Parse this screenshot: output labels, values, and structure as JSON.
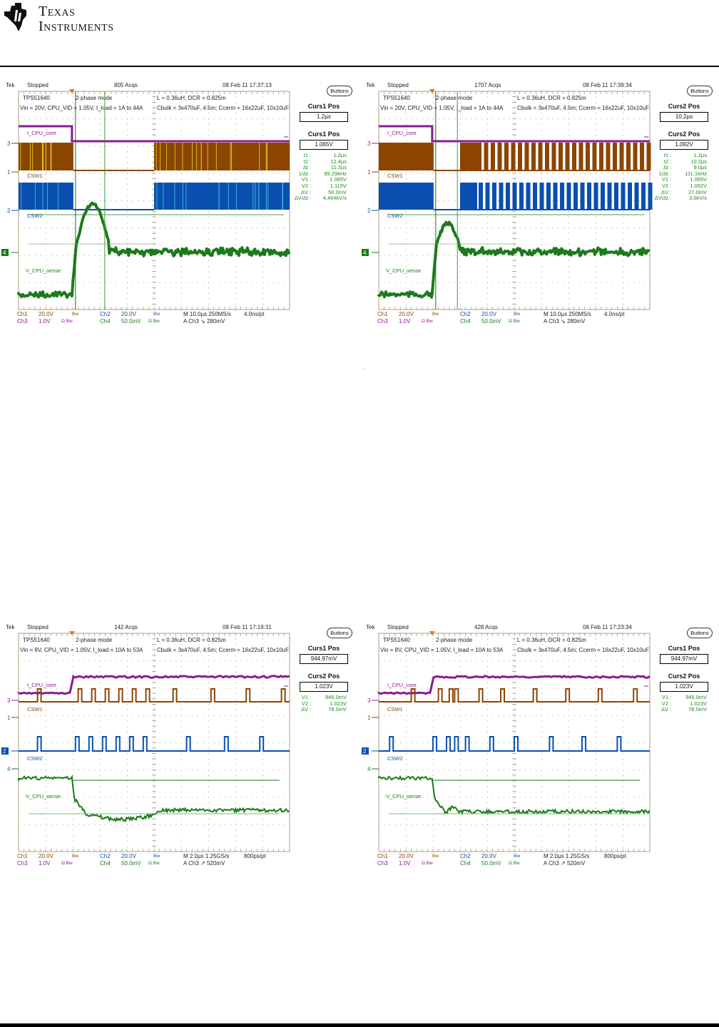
{
  "header": {
    "brand_line1": "Texas",
    "brand_line2": "Instruments",
    "logo_icon": "ti-logo-icon"
  },
  "scopes": [
    {
      "id": "top-left",
      "status": "Stopped",
      "acqs": "805 Acqs",
      "timestamp": "08 Feb 11 17:37:13",
      "notes": {
        "device": "TPS51640",
        "mode": "2-phase mode",
        "conditions": "Vin = 20V, CPU_VID = 1.05V, I_load = 1A to 44A",
        "inductor": "L = 0.36uH, DCR = 0.825m",
        "caps": "Cbulk = 3x470uF, 4.5m;  Ccerm = 16x22uF, 10x10uF"
      },
      "trace_labels": {
        "i": "I_CPU_core",
        "sw1": "CSW1",
        "sw2": "CSW2",
        "v": "V_CPU_sense"
      },
      "channel_markers": {
        "ch3": "3",
        "ch1": "1",
        "ch2": "2",
        "ch4": "4"
      },
      "buttons_label": "Buttons",
      "curs_a_title": "Curs1 Pos",
      "curs_a_value": "1.2µs",
      "curs_b_title": "Curs1 Pos",
      "curs_b_value": "1.065V",
      "measurements": [
        {
          "k": "t1",
          "v": "1.2µs"
        },
        {
          "k": "t2",
          "v": "12.4µs"
        },
        {
          "k": "Δt",
          "v": "11.2µs"
        },
        {
          "k": "1/Δt",
          "v": "89.29kHz"
        },
        {
          "k": "V1",
          "v": "1.065V"
        },
        {
          "k": "V2",
          "v": "1.115V"
        },
        {
          "k": "ΔV",
          "v": "50.0mV"
        },
        {
          "k": "ΔV/Δt",
          "v": "4.464kV/s"
        }
      ],
      "footer": {
        "ch1": "Ch1",
        "ch1_scale": "20.0V",
        "ch1_bw": "Bw",
        "ch2": "Ch2",
        "ch2_scale": "20.0V",
        "ch2_bw": "Bw",
        "ch3": "Ch3",
        "ch3_scale": "1.0V",
        "ch3_bw": "Ω Bw",
        "ch4": "Ch4",
        "ch4_scale": "50.0mV",
        "ch4_bw": "Ω Bw",
        "timebase": "M 10.0µs 250MS/s",
        "resolution": "4.0ns/pt",
        "trigger": "A  Ch3  ↘  280mV"
      },
      "waveform": {
        "kind": "switching-dense",
        "overshoot": "large",
        "gap": [
          0.2,
          0.5
        ]
      }
    },
    {
      "id": "top-right",
      "status": "Stopped",
      "acqs": "1707 Acqs",
      "timestamp": "08 Feb 11 17:39:34",
      "notes": {
        "device": "TPS51640",
        "mode": "2-phase mode",
        "conditions": "Vin = 20V, CPU_VID = 1.05V, I_load = 1A to 44A",
        "inductor": "L = 0.36uH, DCR = 0.825m",
        "caps": "Cbulk = 3x470uF, 4.5m;  Ccerm = 16x22uF, 10x10uF"
      },
      "trace_labels": {
        "i": "I_CPU_core",
        "sw1": "CSW1",
        "sw2": "CSW2",
        "v": "V_CPU_sense"
      },
      "channel_markers": {
        "ch3": "3",
        "ch1": "1",
        "ch2": "2",
        "ch4": "4"
      },
      "buttons_label": "Buttons",
      "curs_a_title": "Curs2 Pos",
      "curs_a_value": "10.2µs",
      "curs_b_title": "Curs2 Pos",
      "curs_b_value": "1.092V",
      "measurements": [
        {
          "k": "t1",
          "v": "1.2µs"
        },
        {
          "k": "t2",
          "v": "10.2µs"
        },
        {
          "k": "Δt",
          "v": "9.0µs"
        },
        {
          "k": "1/Δt",
          "v": "111.1kHz"
        },
        {
          "k": "V1",
          "v": "1.065V"
        },
        {
          "k": "V2",
          "v": "1.092V"
        },
        {
          "k": "ΔV",
          "v": "27.0mV"
        },
        {
          "k": "ΔV/Δt",
          "v": "3.0kV/s"
        }
      ],
      "footer": {
        "ch1": "Ch1",
        "ch1_scale": "20.0V",
        "ch1_bw": "Bw",
        "ch2": "Ch2",
        "ch2_scale": "20.0V",
        "ch2_bw": "Bw",
        "ch3": "Ch3",
        "ch3_scale": "1.0V",
        "ch3_bw": "Ω Bw",
        "ch4": "Ch4",
        "ch4_scale": "50.0mV",
        "ch4_bw": "Ω Bw",
        "timebase": "M 10.0µs 250MS/s",
        "resolution": "4.0ns/pt",
        "trigger": "A  Ch3  ↘  280mV"
      },
      "waveform": {
        "kind": "switching-pulsed",
        "overshoot": "medium",
        "gap": [
          0.2,
          0.3
        ]
      }
    },
    {
      "id": "bottom-left",
      "status": "Stopped",
      "acqs": "142 Acqs",
      "timestamp": "08 Feb 11 17:19:31",
      "notes": {
        "device": "TPS51640",
        "mode": "2-phase mode",
        "conditions": "Vin = 8V, CPU_VID = 1.05V, I_load = 10A to 53A",
        "inductor": "L = 0.36uH, DCR = 0.825m",
        "caps": "Cbulk = 3x470uF, 4.5m;  Ccerm = 16x22uF, 10x10uF"
      },
      "trace_labels": {
        "i": "I_CPU_core",
        "sw1": "CSW1",
        "sw2": "CSW2",
        "v": "V_CPU_sense"
      },
      "channel_markers": {
        "ch3": "3",
        "ch1": "1",
        "ch2": "2",
        "ch4": "4"
      },
      "buttons_label": "Buttons",
      "curs_a_title": "Curs1 Pos",
      "curs_a_value": "944.97mV",
      "curs_b_title": "Curs2 Pos",
      "curs_b_value": "1.023V",
      "measurements": [
        {
          "k": "V1",
          "v": "945.0mV"
        },
        {
          "k": "V2",
          "v": "1.023V"
        },
        {
          "k": "ΔV",
          "v": "78.0mV"
        }
      ],
      "footer": {
        "ch1": "Ch1",
        "ch1_scale": "20.0V",
        "ch1_bw": "Bw",
        "ch2": "Ch2",
        "ch2_scale": "20.0V",
        "ch2_bw": "Bw",
        "ch3": "Ch3",
        "ch3_scale": "1.0V",
        "ch3_bw": "Ω Bw",
        "ch4": "Ch4",
        "ch4_scale": "50.0mV",
        "ch4_bw": "Ω Bw",
        "timebase": "M 2.0µs 1.25GS/s",
        "resolution": "800ps/pt",
        "trigger": "A  Ch3  ↗  520mV"
      },
      "waveform": {
        "kind": "pulses",
        "pulses_sw1": [
          0.07,
          0.22,
          0.27,
          0.32,
          0.37,
          0.42,
          0.47,
          0.57,
          0.71,
          0.84,
          0.97
        ],
        "pulses_sw2": [
          0.07,
          0.21,
          0.26,
          0.31,
          0.36,
          0.41,
          0.46,
          0.62,
          0.76,
          0.89
        ]
      }
    },
    {
      "id": "bottom-right",
      "status": "Stopped",
      "acqs": "428 Acqs",
      "timestamp": "08 Feb 11 17:23:34",
      "notes": {
        "device": "TPS51640",
        "mode": "2-phase mode",
        "conditions": "Vin = 8V, CPU_VID = 1.05V, I_load = 10A to 53A",
        "inductor": "L = 0.36uH, DCR = 0.825m",
        "caps": "Cbulk = 3x470uF, 4.5m;  Ccerm = 16x22uF, 10x10uF"
      },
      "trace_labels": {
        "i": "I_CPU_core",
        "sw1": "CSW1",
        "sw2": "CSW2",
        "v": "V_CPU_sense"
      },
      "channel_markers": {
        "ch3": "3",
        "ch1": "1",
        "ch2": "2",
        "ch4": "4"
      },
      "buttons_label": "Buttons",
      "curs_a_title": "Curs1 Pos",
      "curs_a_value": "944.97mV",
      "curs_b_title": "Curs2 Pos",
      "curs_b_value": "1.023V",
      "measurements": [
        {
          "k": "V1",
          "v": "945.0mV"
        },
        {
          "k": "V2",
          "v": "1.023V"
        },
        {
          "k": "ΔV",
          "v": "78.0mV"
        }
      ],
      "footer": {
        "ch1": "Ch1",
        "ch1_scale": "20.0V",
        "ch1_bw": "Bw",
        "ch2": "Ch2",
        "ch2_scale": "20.0V",
        "ch2_bw": "Bw",
        "ch3": "Ch3",
        "ch3_scale": "1.0V",
        "ch3_bw": "Ω Bw",
        "ch4": "Ch4",
        "ch4_scale": "50.0mV",
        "ch4_bw": "Ω Bw",
        "timebase": "M 2.0µs 1.25GS/s",
        "resolution": "800ps/pt",
        "trigger": "A  Ch3  ↗  520mV"
      },
      "waveform": {
        "kind": "pulses",
        "pulses_sw1": [
          0.12,
          0.22,
          0.26,
          0.28,
          0.37,
          0.45,
          0.57,
          0.69,
          0.81,
          0.94
        ],
        "pulses_sw2": [
          0.04,
          0.2,
          0.25,
          0.28,
          0.32,
          0.41,
          0.5,
          0.63,
          0.75,
          0.88
        ]
      }
    }
  ],
  "colors": {
    "ch1": "#8b4500",
    "ch2": "#0a4fb0",
    "ch3": "#8a1a96",
    "ch4": "#1c7a1c",
    "grid": "#a89f7e",
    "text": "#222222"
  }
}
